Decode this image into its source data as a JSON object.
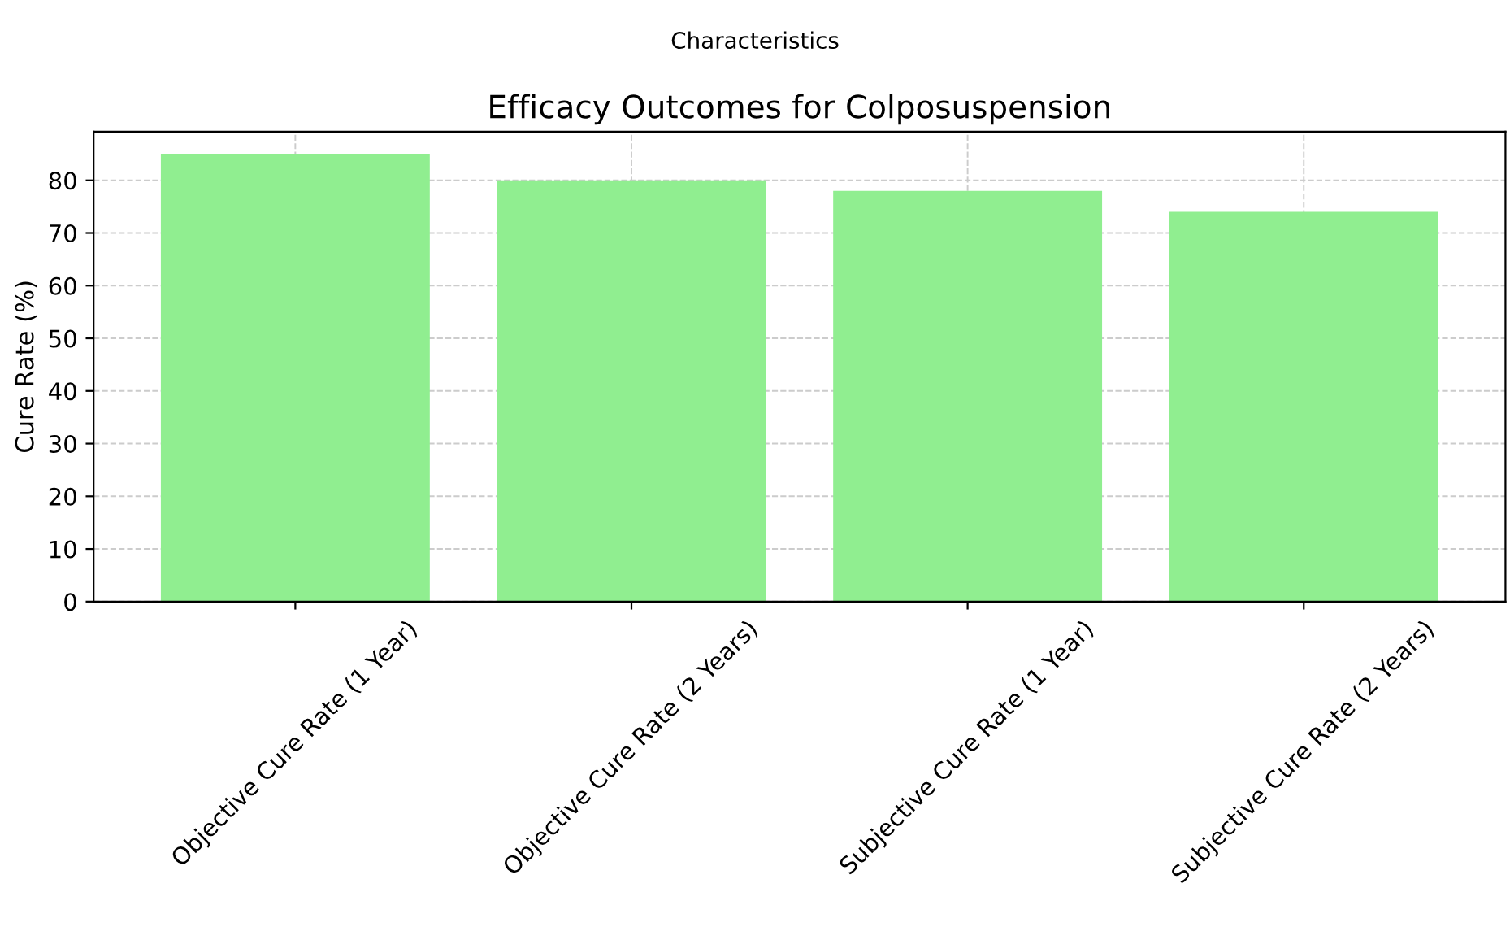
{
  "chart_data": {
    "type": "bar",
    "title": "Efficacy Outcomes for Colposuspension",
    "ylabel": "Cure Rate (%)",
    "annotations": [
      "Characteristics"
    ],
    "categories": [
      "Objective Cure Rate (1 Year)",
      "Objective Cure Rate (2 Years)",
      "Subjective Cure Rate (1 Year)",
      "Subjective Cure Rate (2 Years)"
    ],
    "values": [
      85,
      80,
      78,
      74
    ],
    "color": "#90ee90",
    "ylim": [
      0,
      89.25
    ],
    "yticks": [
      0,
      10,
      20,
      30,
      40,
      50,
      60,
      70,
      80
    ],
    "grid": true
  }
}
